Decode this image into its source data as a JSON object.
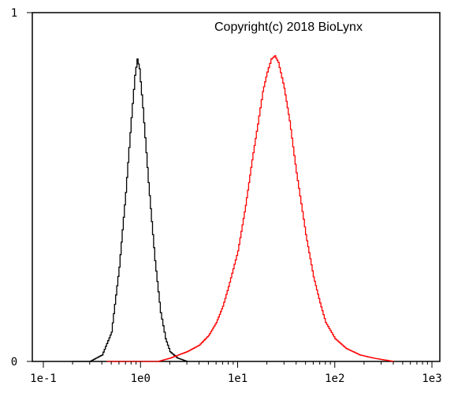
{
  "chart_data": {
    "type": "line",
    "title": "",
    "xlabel": "",
    "ylabel": "",
    "x_scale": "log",
    "xlim": [
      0.1,
      1000
    ],
    "ylim": [
      0,
      1
    ],
    "grid": false,
    "x_ticks": [
      0.1,
      1,
      10,
      100,
      1000
    ],
    "x_tick_labels": [
      "1e-1",
      "1e0",
      "1e1",
      "1e2",
      "1e3"
    ],
    "y_ticks": [
      0,
      1
    ],
    "y_tick_labels": [
      "0",
      "1"
    ],
    "annotation": "Copyright(c) 2018 BioLynx",
    "series": [
      {
        "color": "#000000",
        "points": [
          [
            0.2,
            0.0
          ],
          [
            0.3,
            0.0
          ],
          [
            0.4,
            0.02
          ],
          [
            0.5,
            0.09
          ],
          [
            0.6,
            0.29
          ],
          [
            0.7,
            0.52
          ],
          [
            0.8,
            0.75
          ],
          [
            0.87,
            0.88
          ],
          [
            0.92,
            0.93
          ],
          [
            0.97,
            0.9
          ],
          [
            1.05,
            0.78
          ],
          [
            1.2,
            0.55
          ],
          [
            1.4,
            0.31
          ],
          [
            1.6,
            0.15
          ],
          [
            1.8,
            0.07
          ],
          [
            2.0,
            0.03
          ],
          [
            2.4,
            0.01
          ],
          [
            3.0,
            0.0
          ]
        ]
      },
      {
        "color": "#ff0000",
        "points": [
          [
            0.45,
            0.0
          ],
          [
            1.0,
            0.0
          ],
          [
            1.5,
            0.0
          ],
          [
            2.0,
            0.01
          ],
          [
            3.0,
            0.03
          ],
          [
            4.0,
            0.05
          ],
          [
            5.0,
            0.08
          ],
          [
            6.0,
            0.12
          ],
          [
            7.0,
            0.17
          ],
          [
            8.0,
            0.23
          ],
          [
            10.0,
            0.34
          ],
          [
            12.0,
            0.48
          ],
          [
            14.0,
            0.62
          ],
          [
            16.0,
            0.73
          ],
          [
            18.0,
            0.83
          ],
          [
            20.0,
            0.89
          ],
          [
            22.0,
            0.93
          ],
          [
            24.0,
            0.94
          ],
          [
            26.0,
            0.92
          ],
          [
            30.0,
            0.84
          ],
          [
            34.0,
            0.74
          ],
          [
            40.0,
            0.58
          ],
          [
            50.0,
            0.39
          ],
          [
            60.0,
            0.26
          ],
          [
            70.0,
            0.18
          ],
          [
            80.0,
            0.12
          ],
          [
            100.0,
            0.07
          ],
          [
            130.0,
            0.04
          ],
          [
            180.0,
            0.02
          ],
          [
            250.0,
            0.01
          ],
          [
            400.0,
            0.0
          ]
        ]
      }
    ]
  }
}
